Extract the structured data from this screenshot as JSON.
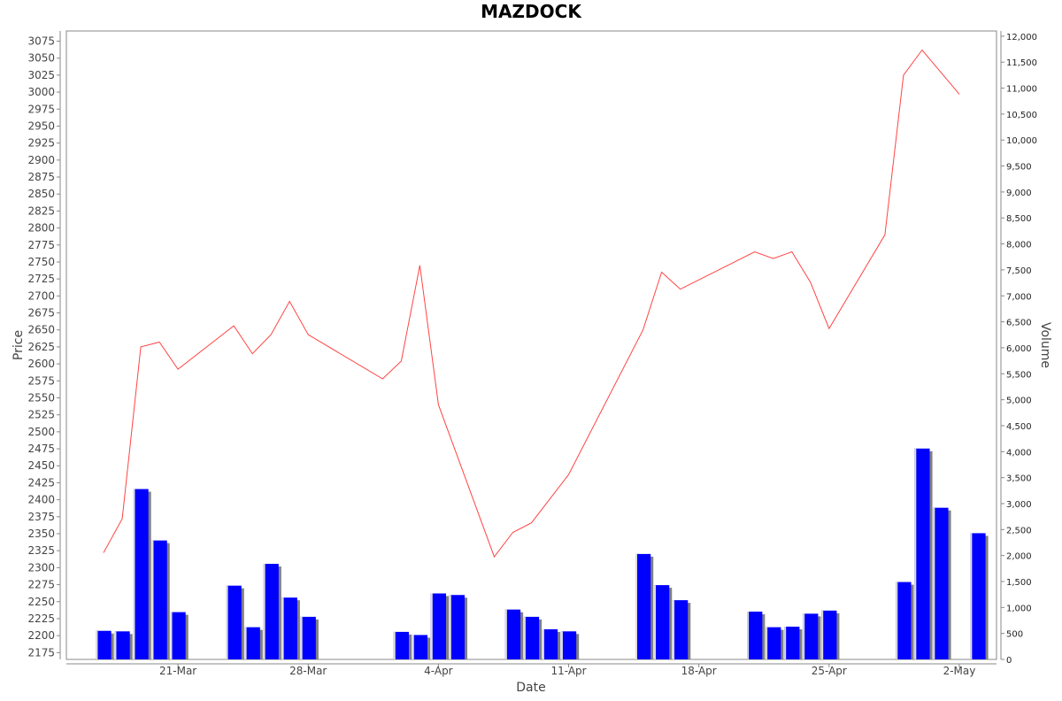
{
  "chart_data": {
    "type": "line+bar",
    "title": "MAZDOCK",
    "xlabel": "Date",
    "ylabel": "Price",
    "y2label": "Volume",
    "x_range": [
      "2025-03-15",
      "2025-05-04"
    ],
    "x_ticks": [
      {
        "date": "2025-03-21",
        "label": "21-Mar"
      },
      {
        "date": "2025-03-28",
        "label": "28-Mar"
      },
      {
        "date": "2025-04-04",
        "label": "4-Apr"
      },
      {
        "date": "2025-04-11",
        "label": "11-Apr"
      },
      {
        "date": "2025-04-18",
        "label": "18-Apr"
      },
      {
        "date": "2025-04-25",
        "label": "25-Apr"
      },
      {
        "date": "2025-05-02",
        "label": "2-May"
      }
    ],
    "ylim": [
      2165,
      3090
    ],
    "y_ticks": [
      2175,
      2200,
      2225,
      2250,
      2275,
      2300,
      2325,
      2350,
      2375,
      2400,
      2425,
      2450,
      2475,
      2500,
      2525,
      2550,
      2575,
      2600,
      2625,
      2650,
      2675,
      2700,
      2725,
      2750,
      2775,
      2800,
      2825,
      2850,
      2875,
      2900,
      2925,
      2950,
      2975,
      3000,
      3025,
      3050,
      3075
    ],
    "y2lim": [
      0,
      12100
    ],
    "y2_ticks": [
      {
        "value": 0,
        "label": "0"
      },
      {
        "value": 500,
        "label": "500"
      },
      {
        "value": 1000,
        "label": "1,000"
      },
      {
        "value": 1500,
        "label": "1,500"
      },
      {
        "value": 2000,
        "label": "2,000"
      },
      {
        "value": 2500,
        "label": "2,500"
      },
      {
        "value": 3000,
        "label": "3,000"
      },
      {
        "value": 3500,
        "label": "3,500"
      },
      {
        "value": 4000,
        "label": "4,000"
      },
      {
        "value": 4500,
        "label": "4,500"
      },
      {
        "value": 5000,
        "label": "5,000"
      },
      {
        "value": 5500,
        "label": "5,500"
      },
      {
        "value": 6000,
        "label": "6,000"
      },
      {
        "value": 6500,
        "label": "6,500"
      },
      {
        "value": 7000,
        "label": "7,000"
      },
      {
        "value": 7500,
        "label": "7,500"
      },
      {
        "value": 8000,
        "label": "8,000"
      },
      {
        "value": 8500,
        "label": "8,500"
      },
      {
        "value": 9000,
        "label": "9,000"
      },
      {
        "value": 9500,
        "label": "9,500"
      },
      {
        "value": 10000,
        "label": "10,000"
      },
      {
        "value": 10500,
        "label": "10,500"
      },
      {
        "value": 11000,
        "label": "11,000"
      },
      {
        "value": 11500,
        "label": "11,500"
      },
      {
        "value": 12000,
        "label": "12,000"
      }
    ],
    "series": [
      {
        "name": "Price",
        "type": "line",
        "color": "#ff4444",
        "points": [
          {
            "date": "2025-03-17",
            "value": 2322
          },
          {
            "date": "2025-03-18",
            "value": 2372
          },
          {
            "date": "2025-03-19",
            "value": 2625
          },
          {
            "date": "2025-03-20",
            "value": 2632
          },
          {
            "date": "2025-03-21",
            "value": 2592
          },
          {
            "date": "2025-03-24",
            "value": 2656
          },
          {
            "date": "2025-03-25",
            "value": 2615
          },
          {
            "date": "2025-03-26",
            "value": 2643
          },
          {
            "date": "2025-03-27",
            "value": 2692
          },
          {
            "date": "2025-03-28",
            "value": 2643
          },
          {
            "date": "2025-04-01",
            "value": 2578
          },
          {
            "date": "2025-04-02",
            "value": 2604
          },
          {
            "date": "2025-04-03",
            "value": 2745
          },
          {
            "date": "2025-04-04",
            "value": 2540
          },
          {
            "date": "2025-04-07",
            "value": 2316
          },
          {
            "date": "2025-04-08",
            "value": 2352
          },
          {
            "date": "2025-04-09",
            "value": 2366
          },
          {
            "date": "2025-04-11",
            "value": 2437
          },
          {
            "date": "2025-04-15",
            "value": 2650
          },
          {
            "date": "2025-04-16",
            "value": 2735
          },
          {
            "date": "2025-04-17",
            "value": 2710
          },
          {
            "date": "2025-04-21",
            "value": 2765
          },
          {
            "date": "2025-04-22",
            "value": 2755
          },
          {
            "date": "2025-04-23",
            "value": 2765
          },
          {
            "date": "2025-04-24",
            "value": 2720
          },
          {
            "date": "2025-04-25",
            "value": 2652
          },
          {
            "date": "2025-04-28",
            "value": 2790
          },
          {
            "date": "2025-04-29",
            "value": 3025
          },
          {
            "date": "2025-04-30",
            "value": 3062
          },
          {
            "date": "2025-05-02",
            "value": 2997
          }
        ]
      },
      {
        "name": "Volume",
        "type": "bar",
        "color": "#0000ff",
        "shadow_color": "#808080",
        "points": [
          {
            "date": "2025-03-17",
            "value": 550
          },
          {
            "date": "2025-03-18",
            "value": 540
          },
          {
            "date": "2025-03-19",
            "value": 3280
          },
          {
            "date": "2025-03-20",
            "value": 2290
          },
          {
            "date": "2025-03-21",
            "value": 910
          },
          {
            "date": "2025-03-24",
            "value": 1420
          },
          {
            "date": "2025-03-25",
            "value": 620
          },
          {
            "date": "2025-03-26",
            "value": 1840
          },
          {
            "date": "2025-03-27",
            "value": 1190
          },
          {
            "date": "2025-03-28",
            "value": 820
          },
          {
            "date": "2025-04-02",
            "value": 530
          },
          {
            "date": "2025-04-03",
            "value": 470
          },
          {
            "date": "2025-04-04",
            "value": 1270
          },
          {
            "date": "2025-04-05",
            "value": 1240
          },
          {
            "date": "2025-04-08",
            "value": 960
          },
          {
            "date": "2025-04-09",
            "value": 820
          },
          {
            "date": "2025-04-10",
            "value": 580
          },
          {
            "date": "2025-04-11",
            "value": 540
          },
          {
            "date": "2025-04-15",
            "value": 2030
          },
          {
            "date": "2025-04-16",
            "value": 1430
          },
          {
            "date": "2025-04-17",
            "value": 1140
          },
          {
            "date": "2025-04-21",
            "value": 920
          },
          {
            "date": "2025-04-22",
            "value": 620
          },
          {
            "date": "2025-04-23",
            "value": 630
          },
          {
            "date": "2025-04-24",
            "value": 880
          },
          {
            "date": "2025-04-25",
            "value": 940
          },
          {
            "date": "2025-04-29",
            "value": 1490
          },
          {
            "date": "2025-04-30",
            "value": 4060
          },
          {
            "date": "2025-05-01",
            "value": 2920
          },
          {
            "date": "2025-05-03",
            "value": 2430
          }
        ]
      }
    ],
    "grid": false,
    "legend": "none"
  }
}
